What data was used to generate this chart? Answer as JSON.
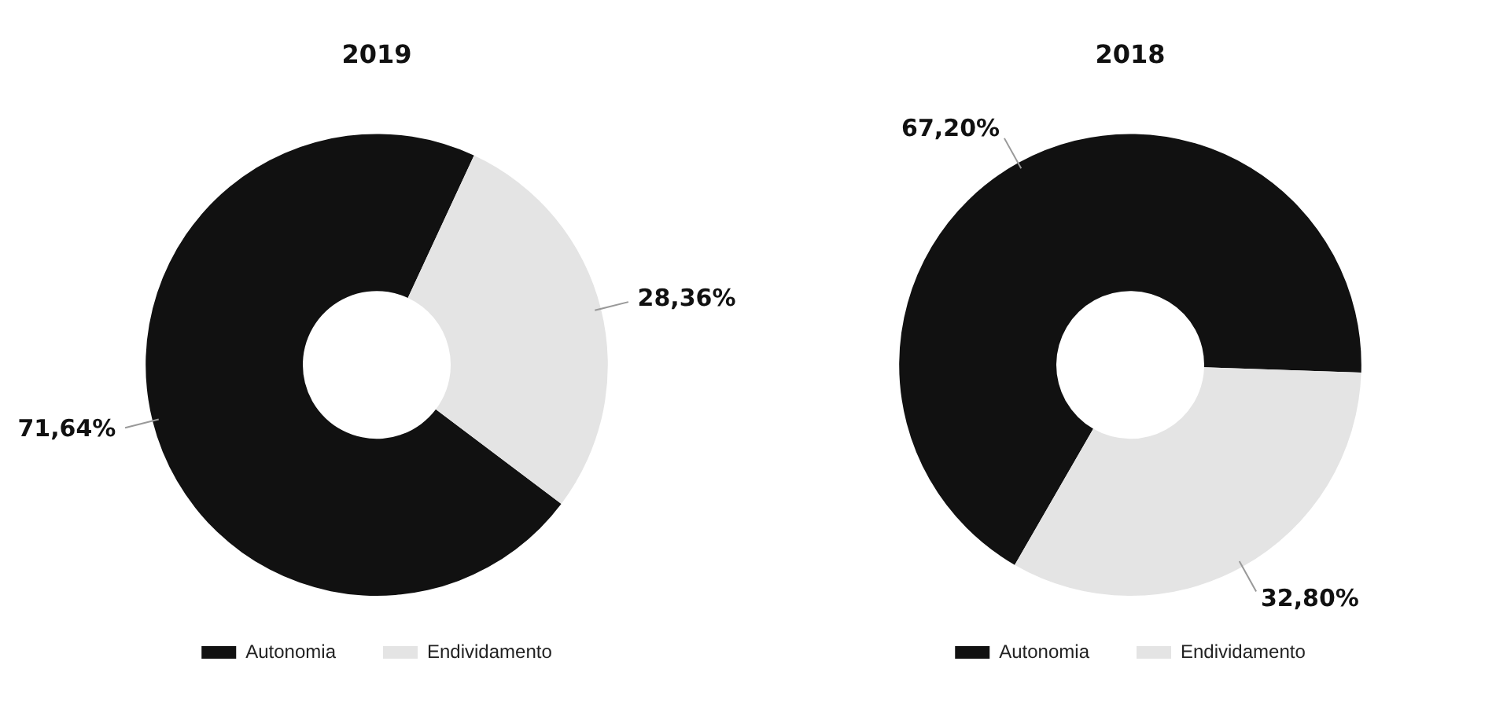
{
  "chart_data": [
    {
      "type": "donut",
      "title": "2019",
      "categories": [
        "Autonomia",
        "Endividamento"
      ],
      "values": [
        71.64,
        28.36
      ],
      "colors": [
        "#111111",
        "#e4e4e4"
      ],
      "value_labels": [
        "71,64%",
        "28,36%"
      ],
      "legend": "bottom"
    },
    {
      "type": "donut",
      "title": "2018",
      "categories": [
        "Autonomia",
        "Endividamento"
      ],
      "values": [
        67.2,
        32.8
      ],
      "colors": [
        "#111111",
        "#e4e4e4"
      ],
      "value_labels": [
        "67,20%",
        "32,80%"
      ],
      "legend": "bottom"
    }
  ]
}
